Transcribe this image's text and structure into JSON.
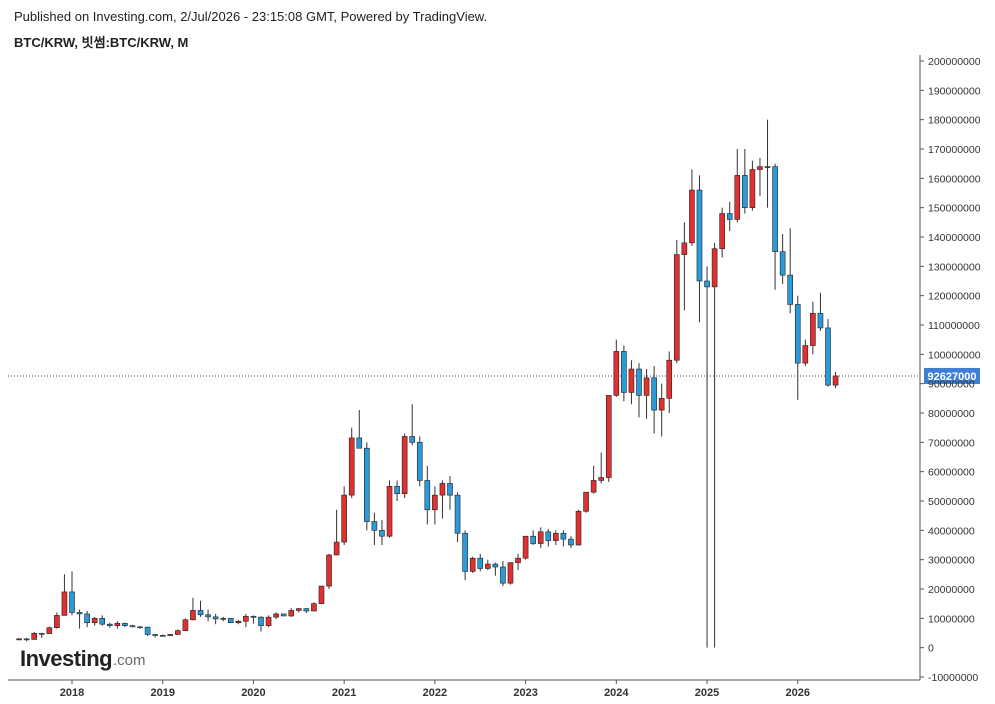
{
  "header": {
    "published": "Published on Investing.com, 2/Jul/2026 - 23:15:08 GMT, Powered by TradingView.",
    "symbol": "BTC/KRW, 빗썸:BTC/KRW, M"
  },
  "logo": {
    "main": "Investing",
    "suffix": ".com"
  },
  "colors": {
    "up": "#e03030",
    "down": "#2a9ad8",
    "wick": "#333333",
    "price_line": "#2a4f7a",
    "price_label_bg": "#3d7fd6"
  },
  "current_price": {
    "value": 92627000,
    "label": "92627000"
  },
  "chart_data": {
    "type": "candlestick",
    "interval": "M",
    "y_range": [
      -10000000,
      200000000
    ],
    "y_ticks": [
      "200000000",
      "190000000",
      "180000000",
      "170000000",
      "160000000",
      "150000000",
      "140000000",
      "130000000",
      "120000000",
      "110000000",
      "100000000",
      "90000000",
      "80000000",
      "70000000",
      "60000000",
      "50000000",
      "40000000",
      "30000000",
      "20000000",
      "10000000",
      "0",
      "-10000000"
    ],
    "x_labels": [
      "2018",
      "2019",
      "2020",
      "2021",
      "2022",
      "2023",
      "2024",
      "2025",
      "2026"
    ],
    "first_candle": "2017-06",
    "candles": [
      [
        2700000,
        3300000,
        2500000,
        3000000
      ],
      [
        3000000,
        3300000,
        2200000,
        2800000
      ],
      [
        2800000,
        5400000,
        2800000,
        4900000
      ],
      [
        4900000,
        5100000,
        3300000,
        4800000
      ],
      [
        4800000,
        7200000,
        4700000,
        6800000
      ],
      [
        6800000,
        12000000,
        6500000,
        11000000
      ],
      [
        11000000,
        25000000,
        11000000,
        19000000
      ],
      [
        19000000,
        26000000,
        11000000,
        12000000
      ],
      [
        12000000,
        13000000,
        6500000,
        11500000
      ],
      [
        11500000,
        12500000,
        7000000,
        8500000
      ],
      [
        8500000,
        10500000,
        7500000,
        10000000
      ],
      [
        10000000,
        11000000,
        7500000,
        8000000
      ],
      [
        8000000,
        8500000,
        6800000,
        7500000
      ],
      [
        7500000,
        9000000,
        6500000,
        8300000
      ],
      [
        8300000,
        8500000,
        7000000,
        7500000
      ],
      [
        7500000,
        7800000,
        7000000,
        7100000
      ],
      [
        7100000,
        7400000,
        6500000,
        7000000
      ],
      [
        7000000,
        7100000,
        4000000,
        4500000
      ],
      [
        4500000,
        4700000,
        3500000,
        4200000
      ],
      [
        4200000,
        4500000,
        3800000,
        4100000
      ],
      [
        4100000,
        4600000,
        4000000,
        4500000
      ],
      [
        4500000,
        6200000,
        4400000,
        5800000
      ],
      [
        5800000,
        10000000,
        5600000,
        9500000
      ],
      [
        9500000,
        17000000,
        9300000,
        12700000
      ],
      [
        12700000,
        16000000,
        10500000,
        11200000
      ],
      [
        11200000,
        13000000,
        9000000,
        10500000
      ],
      [
        10500000,
        11500000,
        8000000,
        9800000
      ],
      [
        9800000,
        10500000,
        9000000,
        10000000
      ],
      [
        10000000,
        10000000,
        8500000,
        8500000
      ],
      [
        8500000,
        9500000,
        8000000,
        9000000
      ],
      [
        9000000,
        11500000,
        7000000,
        10700000
      ],
      [
        10700000,
        11000000,
        8200000,
        10400000
      ],
      [
        10400000,
        10700000,
        5500000,
        7500000
      ],
      [
        7500000,
        11000000,
        7000000,
        10400000
      ],
      [
        10400000,
        12000000,
        9800000,
        11500000
      ],
      [
        11500000,
        11500000,
        10800000,
        10800000
      ],
      [
        10800000,
        13500000,
        10500000,
        12700000
      ],
      [
        12700000,
        13500000,
        12000000,
        13300000
      ],
      [
        13300000,
        13500000,
        11800000,
        12500000
      ],
      [
        12500000,
        15500000,
        12400000,
        15000000
      ],
      [
        15000000,
        21000000,
        14800000,
        21000000
      ],
      [
        21000000,
        32000000,
        20000000,
        31600000
      ],
      [
        31600000,
        47000000,
        31500000,
        36000000
      ],
      [
        36000000,
        55000000,
        35000000,
        52000000
      ],
      [
        52000000,
        75000000,
        51000000,
        71500000
      ],
      [
        71500000,
        81000000,
        68000000,
        68000000
      ],
      [
        68000000,
        70000000,
        40000000,
        43000000
      ],
      [
        43000000,
        46000000,
        35000000,
        40000000
      ],
      [
        40000000,
        43500000,
        35000000,
        38000000
      ],
      [
        38000000,
        57000000,
        37500000,
        55000000
      ],
      [
        55000000,
        57000000,
        50000000,
        52500000
      ],
      [
        52500000,
        73000000,
        51000000,
        72000000
      ],
      [
        72000000,
        83000000,
        69000000,
        70000000
      ],
      [
        70000000,
        72000000,
        55000000,
        57000000
      ],
      [
        57000000,
        62000000,
        42000000,
        47000000
      ],
      [
        47000000,
        55000000,
        42000000,
        52000000
      ],
      [
        52000000,
        57000000,
        44000000,
        56000000
      ],
      [
        56000000,
        58500000,
        47000000,
        52000000
      ],
      [
        52000000,
        53000000,
        36000000,
        39000000
      ],
      [
        39000000,
        40000000,
        23000000,
        26000000
      ],
      [
        26000000,
        31000000,
        25500000,
        30500000
      ],
      [
        30500000,
        32000000,
        26000000,
        27000000
      ],
      [
        27000000,
        30000000,
        26500000,
        28500000
      ],
      [
        28500000,
        29000000,
        24500000,
        27500000
      ],
      [
        27500000,
        29500000,
        21000000,
        22000000
      ],
      [
        22000000,
        29000000,
        21500000,
        29000000
      ],
      [
        29000000,
        32000000,
        26500000,
        30500000
      ],
      [
        30500000,
        38000000,
        30000000,
        38000000
      ],
      [
        38000000,
        40000000,
        35000000,
        35500000
      ],
      [
        35500000,
        41000000,
        34000000,
        39500000
      ],
      [
        39500000,
        40500000,
        34500000,
        36500000
      ],
      [
        36500000,
        40000000,
        35000000,
        39000000
      ],
      [
        39000000,
        40000000,
        34500000,
        37000000
      ],
      [
        37000000,
        38000000,
        34000000,
        35000000
      ],
      [
        35000000,
        47000000,
        34800000,
        46500000
      ],
      [
        46500000,
        53000000,
        46000000,
        53000000
      ],
      [
        53000000,
        62000000,
        52500000,
        57000000
      ],
      [
        57000000,
        66500000,
        56000000,
        58000000
      ],
      [
        58000000,
        86000000,
        56500000,
        86000000
      ],
      [
        86000000,
        105000000,
        85500000,
        101000000
      ],
      [
        101000000,
        103000000,
        84000000,
        87000000
      ],
      [
        87000000,
        98000000,
        83000000,
        95000000
      ],
      [
        95000000,
        97000000,
        78500000,
        86000000
      ],
      [
        86000000,
        95000000,
        78000000,
        92000000
      ],
      [
        92000000,
        96000000,
        73000000,
        81000000
      ],
      [
        81000000,
        90000000,
        72000000,
        85000000
      ],
      [
        85000000,
        101000000,
        80000000,
        98000000
      ],
      [
        98000000,
        139000000,
        97000000,
        134000000
      ],
      [
        134000000,
        145000000,
        115000000,
        138000000
      ],
      [
        138000000,
        163000000,
        137000000,
        156000000
      ],
      [
        156000000,
        161000000,
        111000000,
        125000000
      ],
      [
        125000000,
        130000000,
        0,
        123000000
      ],
      [
        123000000,
        138000000,
        0,
        136000000
      ],
      [
        136000000,
        150000000,
        133000000,
        148000000
      ],
      [
        148000000,
        152000000,
        142000000,
        146000000
      ],
      [
        146000000,
        170000000,
        145000000,
        161000000
      ],
      [
        161000000,
        170000000,
        148000000,
        150000000
      ],
      [
        150000000,
        166000000,
        149000000,
        163000000
      ],
      [
        163000000,
        167000000,
        154000000,
        164000000
      ],
      [
        164000000,
        180000000,
        150000000,
        164000000
      ],
      [
        164000000,
        165000000,
        122000000,
        135000000
      ],
      [
        135000000,
        141000000,
        124000000,
        127000000
      ],
      [
        127000000,
        143000000,
        114000000,
        117000000
      ],
      [
        117000000,
        120000000,
        84500000,
        97000000
      ],
      [
        97000000,
        105000000,
        96000000,
        103000000
      ],
      [
        103000000,
        118000000,
        100000000,
        114000000
      ],
      [
        114000000,
        121000000,
        108000000,
        109000000
      ],
      [
        109000000,
        112000000,
        89000000,
        89500000
      ],
      [
        89500000,
        94000000,
        88500000,
        92627000
      ]
    ]
  }
}
